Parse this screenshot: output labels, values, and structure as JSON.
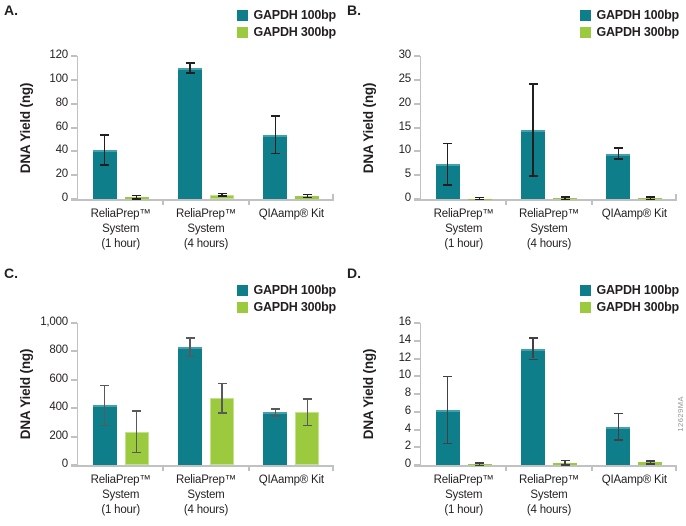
{
  "figure": {
    "watermark": "12629MA",
    "colors": {
      "series1": "#0E7E8A",
      "series1_highlight": "#44A1AB",
      "series2": "#9BCA3F",
      "series2_highlight": "#C4E18C",
      "axis": "#BFC1C3",
      "text": "#231F20",
      "watermark_text": "#939598"
    }
  },
  "legend": {
    "position": "top-right",
    "items": [
      {
        "label": "GAPDH 100bp",
        "color": "#0E7E8A"
      },
      {
        "label": "GAPDH 300bp",
        "color": "#9BCA3F"
      }
    ]
  },
  "chart_data": [
    {
      "panel": "A.",
      "type": "bar",
      "title": "",
      "xlabel": "",
      "ylabel": "DNA Yield (ng)",
      "ylim": [
        0,
        120
      ],
      "ytick_step": 20,
      "ytick_labels": [
        "0",
        "20",
        "40",
        "60",
        "80",
        "100",
        "120"
      ],
      "grid": false,
      "categories": [
        [
          "ReliaPrep™",
          "System",
          "(1 hour)"
        ],
        [
          "ReliaPrep™",
          "System",
          "(4 hours)"
        ],
        [
          "QIAamp® Kit"
        ]
      ],
      "series": [
        {
          "name": "GAPDH 100bp",
          "values": [
            41,
            110,
            54
          ],
          "errors": [
            12,
            3.5,
            15
          ]
        },
        {
          "name": "GAPDH 300bp",
          "values": [
            1.5,
            3.5,
            2.5
          ],
          "errors": [
            0.7,
            0.5,
            0.7
          ]
        }
      ],
      "error_color": "#231F20"
    },
    {
      "panel": "B.",
      "type": "bar",
      "title": "",
      "xlabel": "",
      "ylabel": "DNA Yield (ng)",
      "ylim": [
        0,
        30
      ],
      "ytick_step": 5,
      "ytick_labels": [
        "0",
        "5",
        "10",
        "15",
        "20",
        "25",
        "30"
      ],
      "grid": false,
      "categories": [
        [
          "ReliaPrep™",
          "System",
          "(1 hour)"
        ],
        [
          "ReliaPrep™",
          "System",
          "(4 hours)"
        ],
        [
          "QIAamp® Kit"
        ]
      ],
      "series": [
        {
          "name": "GAPDH 100bp",
          "values": [
            7.3,
            14.5,
            9.5
          ],
          "errors": [
            4.2,
            9.5,
            1.0
          ]
        },
        {
          "name": "GAPDH 300bp",
          "values": [
            0.1,
            0.2,
            0.2
          ],
          "errors": [
            0.05,
            0.1,
            0.1
          ]
        }
      ],
      "error_color": "#231F20"
    },
    {
      "panel": "C.",
      "type": "bar",
      "title": "",
      "xlabel": "",
      "ylabel": "DNA Yield (ng)",
      "ylim": [
        0,
        1000
      ],
      "ytick_step": 200,
      "ytick_labels": [
        "0",
        "200",
        "400",
        "600",
        "800",
        "1,000"
      ],
      "grid": false,
      "categories": [
        [
          "ReliaPrep™",
          "System",
          "(1 hour)"
        ],
        [
          "ReliaPrep™",
          "System",
          "(4 hours)"
        ],
        [
          "QIAamp® Kit"
        ]
      ],
      "series": [
        {
          "name": "GAPDH 100bp",
          "values": [
            420,
            830,
            370
          ],
          "errors": [
            135,
            60,
            20
          ]
        },
        {
          "name": "GAPDH 300bp",
          "values": [
            235,
            470,
            372
          ],
          "errors": [
            140,
            98,
            88
          ]
        }
      ],
      "error_color": "#58595B"
    },
    {
      "panel": "D.",
      "type": "bar",
      "title": "",
      "xlabel": "",
      "ylabel": "DNA Yield (ng)",
      "ylim": [
        0,
        16
      ],
      "ytick_step": 2,
      "ytick_labels": [
        "0",
        "2",
        "4",
        "6",
        "8",
        "10",
        "12",
        "14",
        "16"
      ],
      "grid": false,
      "categories": [
        [
          "ReliaPrep™",
          "System",
          "(1 hour)"
        ],
        [
          "ReliaPrep™",
          "System",
          "(4 hours)"
        ],
        [
          "QIAamp® Kit"
        ]
      ],
      "series": [
        {
          "name": "GAPDH 100bp",
          "values": [
            6.2,
            13.1,
            4.3
          ],
          "errors": [
            3.7,
            1.1,
            1.4
          ]
        },
        {
          "name": "GAPDH 300bp",
          "values": [
            0.1,
            0.25,
            0.3
          ],
          "errors": [
            0.05,
            0.15,
            0.08
          ]
        }
      ],
      "error_color": "#414042"
    }
  ]
}
